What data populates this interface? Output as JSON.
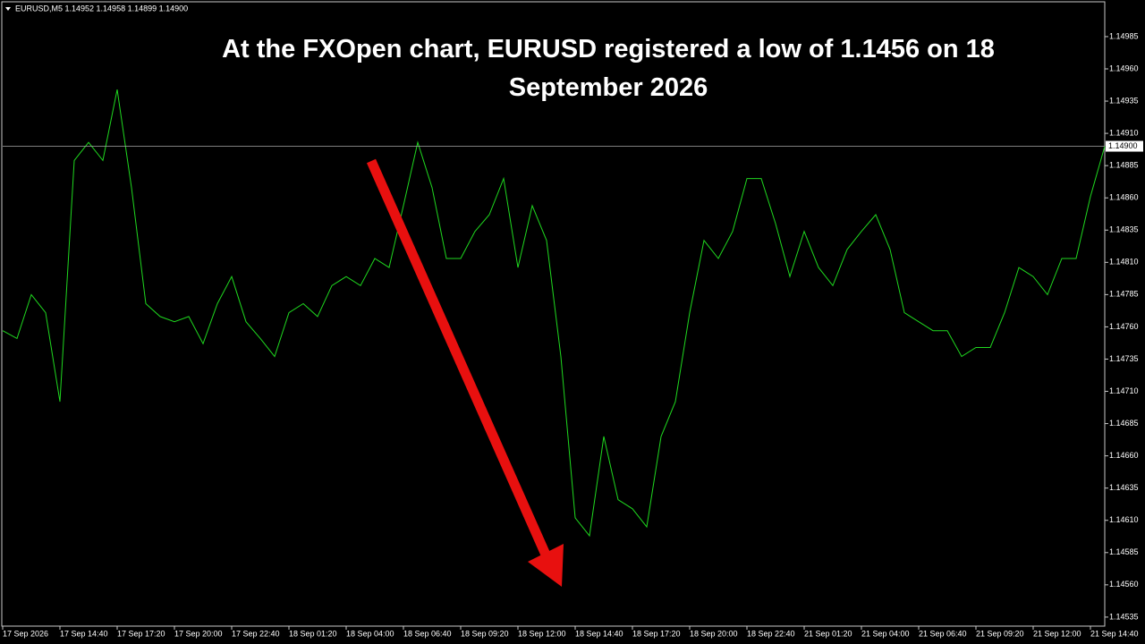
{
  "chart_data": {
    "type": "line",
    "subtitle": "EURUSD,M5  1.14952 1.14958 1.14899 1.14900",
    "title": "At the FXOpen chart, EURUSD registered a low of 1.1456 on 18 September 2026",
    "series": [
      {
        "name": "EURUSD",
        "color": "#1fd81f",
        "values": [
          1.14757,
          1.14751,
          1.14785,
          1.14771,
          1.14702,
          1.14889,
          1.14903,
          1.14889,
          1.14944,
          1.14868,
          1.14778,
          1.14768,
          1.14764,
          1.14768,
          1.14747,
          1.14778,
          1.14799,
          1.14764,
          1.14751,
          1.14737,
          1.14771,
          1.14778,
          1.14768,
          1.14792,
          1.14799,
          1.14792,
          1.14813,
          1.14806,
          1.14854,
          1.14903,
          1.14868,
          1.14813,
          1.14813,
          1.14834,
          1.14847,
          1.14875,
          1.14806,
          1.14854,
          1.14827,
          1.14737,
          1.14612,
          1.14598,
          1.14675,
          1.14626,
          1.14619,
          1.14605,
          1.14675,
          1.14702,
          1.14771,
          1.14827,
          1.14813,
          1.14834,
          1.14875,
          1.14875,
          1.1484,
          1.14799,
          1.14834,
          1.14806,
          1.14792,
          1.1482,
          1.14834,
          1.14847,
          1.1482,
          1.14771,
          1.14764,
          1.14757,
          1.14757,
          1.14737,
          1.14744,
          1.14744,
          1.14771,
          1.14806,
          1.14799,
          1.14785,
          1.14813,
          1.14813,
          1.14861,
          1.149
        ]
      }
    ],
    "current_price": {
      "value": 1.149,
      "label": "1.14900"
    },
    "xlim": [
      0,
      77
    ],
    "xticks": [
      {
        "value": 0,
        "label": "17 Sep 2026"
      },
      {
        "value": 4,
        "label": "17 Sep 14:40"
      },
      {
        "value": 8,
        "label": "17 Sep 17:20"
      },
      {
        "value": 12,
        "label": "17 Sep 20:00"
      },
      {
        "value": 16,
        "label": "17 Sep 22:40"
      },
      {
        "value": 20,
        "label": "18 Sep 01:20"
      },
      {
        "value": 24,
        "label": "18 Sep 04:00"
      },
      {
        "value": 28,
        "label": "18 Sep 06:40"
      },
      {
        "value": 32,
        "label": "18 Sep 09:20"
      },
      {
        "value": 36,
        "label": "18 Sep 12:00"
      },
      {
        "value": 40,
        "label": "18 Sep 14:40"
      },
      {
        "value": 44,
        "label": "18 Sep 17:20"
      },
      {
        "value": 48,
        "label": "18 Sep 20:00"
      },
      {
        "value": 52,
        "label": "18 Sep 22:40"
      },
      {
        "value": 56,
        "label": "21 Sep 01:20"
      },
      {
        "value": 60,
        "label": "21 Sep 04:00"
      },
      {
        "value": 64,
        "label": "21 Sep 06:40"
      },
      {
        "value": 68,
        "label": "21 Sep 09:20"
      },
      {
        "value": 72,
        "label": "21 Sep 12:00"
      },
      {
        "value": 76,
        "label": "21 Sep 14:40"
      }
    ],
    "ylim": [
      1.14528,
      1.15012
    ],
    "yticks": [
      1.14985,
      {
        "value": 1.1496,
        "label": "1.14960"
      },
      1.14935,
      {
        "value": 1.1491,
        "label": "1.14910"
      },
      1.14885,
      {
        "value": 1.1486,
        "label": "1.14860"
      },
      1.14835,
      {
        "value": 1.1481,
        "label": "1.14810"
      },
      1.14785,
      {
        "value": 1.1476,
        "label": "1.14760"
      },
      1.14735,
      {
        "value": 1.1471,
        "label": "1.14710"
      },
      1.14685,
      {
        "value": 1.1466,
        "label": "1.14660"
      },
      1.14635,
      {
        "value": 1.1461,
        "label": "1.14610"
      },
      1.14585,
      {
        "value": 1.1456,
        "label": "1.14560"
      },
      1.14535
    ],
    "grid": false
  }
}
